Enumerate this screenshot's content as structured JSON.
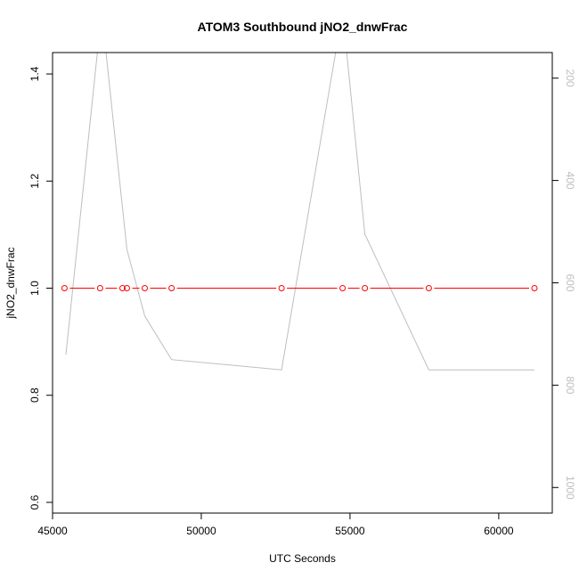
{
  "chart_data": {
    "type": "line",
    "title": "ATOM3 Southbound jNO2_dnwFrac",
    "xlabel": "UTC Seconds",
    "ylabel": "jNO2_dnwFrac",
    "xlim": [
      45000,
      61800
    ],
    "ylim": [
      0.58,
      1.44
    ],
    "x_ticks": [
      45000,
      50000,
      55000,
      60000
    ],
    "y_ticks": [
      0.6,
      0.8,
      1.0,
      1.2,
      1.4
    ],
    "y2_ticks": [
      200,
      400,
      600,
      800,
      1000
    ],
    "y2lim": [
      1050,
      150
    ],
    "series": [
      {
        "color": "#ff0000",
        "marker": "open-circle",
        "x": [
          45400,
          46600,
          47350,
          47500,
          48100,
          49000,
          52700,
          54750,
          55500,
          57650,
          61200
        ],
        "y": [
          1.0,
          1.0,
          1.0,
          1.0,
          1.0,
          1.0,
          1.0,
          1.0,
          1.0,
          1.0,
          1.0
        ]
      },
      {
        "color": "#bebebe",
        "axis": "right",
        "x": [
          45450,
          46650,
          47500,
          48100,
          49000,
          52700,
          54750,
          55500,
          57650,
          61200
        ],
        "y": [
          740,
          70,
          535,
          665,
          750,
          770,
          70,
          505,
          770,
          770
        ]
      }
    ]
  }
}
